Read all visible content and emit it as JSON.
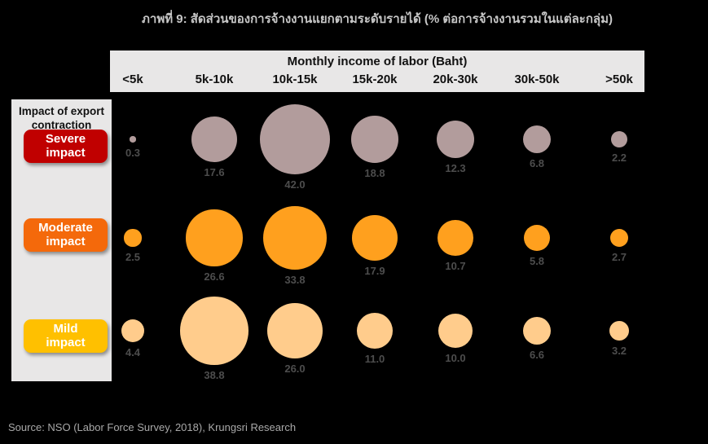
{
  "chart_data": {
    "type": "scatter",
    "variant": "bubble-matrix",
    "title": "ภาพที่ 9: สัดส่วนของการจ้างงานแยกตามระดับรายได้ (% ต่อการจ้างงานรวมในแต่ละกลุ่ม)",
    "xlabel": "Monthly income of labor (Baht)",
    "ylabel": "Impact of export contraction",
    "x_categories": [
      "<5k",
      "5k-10k",
      "10k-15k",
      "15k-20k",
      "20k-30k",
      "30k-50k",
      ">50k"
    ],
    "y_categories": [
      "Severe impact",
      "Moderate impact",
      "Mild impact"
    ],
    "series": [
      {
        "name": "Severe impact",
        "legend_color": "#C00000",
        "bubble_color": "#B29C9C",
        "values": [
          0.3,
          17.6,
          42.0,
          18.8,
          12.3,
          6.8,
          2.2
        ]
      },
      {
        "name": "Moderate impact",
        "legend_color": "#F4690B",
        "bubble_color": "#FFA01E",
        "values": [
          2.5,
          26.6,
          33.8,
          17.9,
          10.7,
          5.8,
          2.7
        ]
      },
      {
        "name": "Mild impact",
        "legend_color": "#FFC000",
        "bubble_color": "#FFCC8C",
        "values": [
          4.4,
          38.8,
          26.0,
          11.0,
          10.0,
          6.6,
          3.2
        ]
      }
    ],
    "units": "% of total employment within each group",
    "size_encoding": "bubble area proportional to value",
    "legend_position": "left",
    "grid": false
  },
  "source_note": "Source: NSO (Labor Force Survey, 2018), Krungsri Research"
}
